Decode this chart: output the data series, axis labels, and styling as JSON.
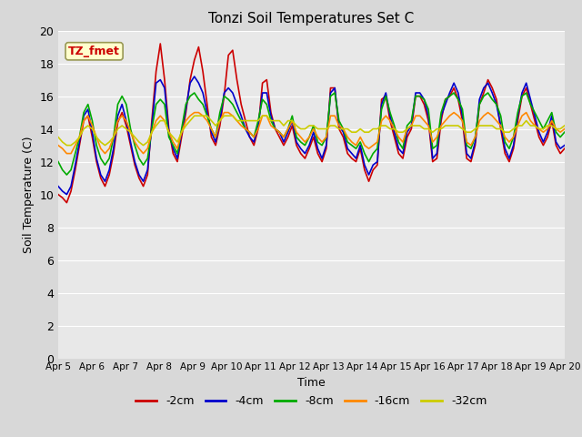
{
  "title": "Tonzi Soil Temperatures Set C",
  "xlabel": "Time",
  "ylabel": "Soil Temperature (C)",
  "annotation": "TZ_fmet",
  "ylim": [
    0,
    20
  ],
  "yticks": [
    0,
    2,
    4,
    6,
    8,
    10,
    12,
    14,
    16,
    18,
    20
  ],
  "xtick_labels": [
    "Apr 5",
    "Apr 6",
    "Apr 7",
    "Apr 8",
    "Apr 9",
    "Apr 10",
    "Apr 11",
    "Apr 12",
    "Apr 13",
    "Apr 14",
    "Apr 15",
    "Apr 16",
    "Apr 17",
    "Apr 18",
    "Apr 19",
    "Apr 20"
  ],
  "series_colors": [
    "#cc0000",
    "#0000cc",
    "#00aa00",
    "#ff8800",
    "#cccc00"
  ],
  "series_labels": [
    "-2cm",
    "-4cm",
    "-8cm",
    "-16cm",
    "-32cm"
  ],
  "series_linewidths": [
    1.2,
    1.2,
    1.2,
    1.2,
    1.2
  ],
  "outer_bg_color": "#d8d8d8",
  "plot_bg_color": "#e8e8e8",
  "grid_color": "#ffffff",
  "n_points": 120,
  "cm2": [
    10.0,
    9.8,
    9.5,
    10.2,
    11.5,
    13.0,
    14.5,
    14.8,
    13.5,
    12.0,
    11.0,
    10.5,
    11.2,
    12.5,
    14.4,
    15.0,
    14.2,
    13.0,
    11.8,
    11.0,
    10.5,
    11.2,
    14.5,
    17.5,
    19.2,
    17.0,
    14.0,
    12.5,
    12.0,
    13.5,
    15.0,
    17.0,
    18.2,
    19.0,
    17.5,
    15.5,
    13.5,
    13.0,
    14.2,
    16.0,
    18.5,
    18.8,
    17.0,
    15.5,
    14.5,
    13.5,
    13.0,
    14.0,
    16.8,
    17.0,
    15.0,
    14.0,
    13.5,
    13.0,
    13.5,
    14.2,
    13.0,
    12.5,
    12.2,
    12.8,
    13.5,
    12.5,
    12.0,
    12.8,
    16.5,
    16.5,
    14.0,
    13.5,
    12.5,
    12.2,
    12.0,
    12.8,
    11.5,
    10.8,
    11.5,
    11.8,
    15.8,
    16.0,
    14.5,
    13.5,
    12.5,
    12.2,
    13.5,
    14.0,
    16.0,
    16.0,
    15.5,
    14.5,
    12.0,
    12.2,
    14.5,
    15.8,
    16.0,
    16.5,
    15.8,
    14.5,
    12.2,
    12.0,
    13.0,
    15.5,
    16.2,
    17.0,
    16.5,
    15.8,
    14.0,
    12.5,
    12.0,
    12.8,
    14.5,
    16.0,
    16.5,
    15.5,
    14.5,
    13.5,
    13.0,
    13.5,
    14.5,
    13.0,
    12.5,
    12.8
  ],
  "cm4": [
    10.5,
    10.2,
    10.0,
    10.5,
    11.8,
    13.2,
    14.8,
    15.2,
    13.8,
    12.2,
    11.2,
    10.8,
    11.5,
    12.8,
    14.8,
    15.5,
    14.5,
    13.2,
    12.0,
    11.2,
    10.8,
    11.5,
    14.2,
    16.8,
    17.0,
    16.5,
    13.8,
    12.8,
    12.2,
    13.8,
    15.2,
    16.8,
    17.2,
    16.8,
    16.2,
    15.0,
    13.8,
    13.2,
    14.5,
    16.2,
    16.5,
    16.2,
    15.5,
    14.8,
    14.0,
    13.5,
    13.2,
    14.2,
    16.2,
    16.2,
    14.8,
    14.0,
    13.8,
    13.2,
    13.8,
    14.5,
    13.2,
    12.8,
    12.5,
    13.0,
    13.8,
    12.8,
    12.2,
    13.0,
    16.2,
    16.5,
    14.2,
    13.8,
    12.8,
    12.5,
    12.2,
    13.0,
    11.8,
    11.2,
    11.8,
    12.0,
    15.5,
    16.2,
    14.8,
    13.8,
    12.8,
    12.5,
    13.8,
    14.2,
    16.2,
    16.2,
    15.8,
    14.8,
    12.2,
    12.5,
    14.8,
    15.5,
    16.2,
    16.8,
    16.2,
    14.8,
    12.5,
    12.2,
    13.2,
    15.8,
    16.5,
    16.8,
    16.2,
    15.5,
    14.2,
    12.8,
    12.2,
    13.0,
    14.8,
    16.2,
    16.8,
    15.8,
    14.8,
    13.8,
    13.2,
    13.8,
    14.8,
    13.2,
    12.8,
    13.0
  ],
  "cm8": [
    12.0,
    11.5,
    11.2,
    11.5,
    12.5,
    13.5,
    15.0,
    15.5,
    14.5,
    13.0,
    12.2,
    11.8,
    12.2,
    13.5,
    15.5,
    16.0,
    15.5,
    14.0,
    13.0,
    12.2,
    11.8,
    12.2,
    14.0,
    15.5,
    15.8,
    15.5,
    13.5,
    13.0,
    12.5,
    14.0,
    15.5,
    16.0,
    16.2,
    15.8,
    15.5,
    14.8,
    14.0,
    13.5,
    15.0,
    16.0,
    15.8,
    15.5,
    15.0,
    14.5,
    14.0,
    13.8,
    13.5,
    14.5,
    15.8,
    15.5,
    14.5,
    14.0,
    13.8,
    13.5,
    14.0,
    14.8,
    13.5,
    13.2,
    13.0,
    13.5,
    14.2,
    13.2,
    13.0,
    13.5,
    16.0,
    16.2,
    14.5,
    14.0,
    13.2,
    13.0,
    12.8,
    13.2,
    12.5,
    12.0,
    12.5,
    12.8,
    15.2,
    16.0,
    15.0,
    14.2,
    13.2,
    12.8,
    14.2,
    14.5,
    16.0,
    16.0,
    15.8,
    15.2,
    12.8,
    13.0,
    15.0,
    15.8,
    16.0,
    16.2,
    15.8,
    15.2,
    13.0,
    12.8,
    13.5,
    15.5,
    16.0,
    16.2,
    15.8,
    15.5,
    14.8,
    13.2,
    12.8,
    13.5,
    15.0,
    16.0,
    16.2,
    15.5,
    15.0,
    14.5,
    14.0,
    14.5,
    15.0,
    13.8,
    13.5,
    13.8
  ],
  "cm16": [
    13.0,
    12.8,
    12.5,
    12.5,
    13.0,
    13.5,
    14.5,
    14.8,
    14.2,
    13.5,
    12.8,
    12.5,
    12.8,
    13.5,
    14.5,
    14.8,
    14.5,
    13.8,
    13.2,
    12.8,
    12.5,
    12.8,
    13.8,
    14.5,
    14.8,
    14.5,
    13.8,
    13.2,
    12.8,
    13.8,
    14.5,
    14.8,
    15.0,
    15.0,
    14.8,
    14.5,
    14.0,
    13.5,
    14.5,
    15.0,
    15.0,
    14.8,
    14.5,
    14.2,
    14.0,
    13.8,
    13.5,
    14.0,
    14.8,
    14.8,
    14.2,
    14.0,
    13.8,
    13.5,
    14.0,
    14.5,
    13.8,
    13.5,
    13.2,
    13.5,
    14.0,
    13.5,
    13.2,
    13.5,
    14.8,
    14.8,
    14.2,
    14.0,
    13.5,
    13.2,
    13.0,
    13.5,
    13.0,
    12.8,
    13.0,
    13.2,
    14.5,
    14.8,
    14.5,
    14.0,
    13.5,
    13.2,
    14.0,
    14.2,
    14.8,
    14.8,
    14.5,
    14.2,
    13.2,
    13.5,
    14.2,
    14.5,
    14.8,
    15.0,
    14.8,
    14.5,
    13.2,
    13.0,
    13.5,
    14.5,
    14.8,
    15.0,
    14.8,
    14.5,
    14.2,
    13.5,
    13.2,
    13.5,
    14.2,
    14.8,
    15.0,
    14.5,
    14.2,
    14.0,
    13.8,
    14.0,
    14.5,
    14.0,
    13.8,
    14.0
  ],
  "cm32": [
    13.5,
    13.2,
    13.0,
    13.0,
    13.2,
    13.5,
    14.0,
    14.2,
    14.0,
    13.5,
    13.2,
    13.0,
    13.2,
    13.5,
    14.0,
    14.2,
    14.0,
    13.8,
    13.5,
    13.2,
    13.0,
    13.2,
    13.8,
    14.2,
    14.5,
    14.5,
    13.8,
    13.5,
    13.2,
    13.8,
    14.2,
    14.5,
    14.8,
    14.8,
    14.8,
    14.8,
    14.5,
    14.2,
    14.5,
    14.8,
    14.8,
    14.8,
    14.5,
    14.5,
    14.5,
    14.5,
    14.5,
    14.5,
    14.8,
    14.8,
    14.5,
    14.5,
    14.5,
    14.2,
    14.5,
    14.5,
    14.2,
    14.0,
    14.0,
    14.2,
    14.2,
    14.0,
    14.0,
    14.0,
    14.2,
    14.2,
    14.0,
    14.0,
    14.0,
    13.8,
    13.8,
    14.0,
    13.8,
    13.8,
    14.0,
    14.0,
    14.2,
    14.2,
    14.0,
    14.0,
    13.8,
    13.8,
    14.0,
    14.2,
    14.2,
    14.2,
    14.0,
    14.0,
    13.8,
    14.0,
    14.0,
    14.2,
    14.2,
    14.2,
    14.2,
    14.0,
    13.8,
    13.8,
    14.0,
    14.2,
    14.2,
    14.2,
    14.2,
    14.0,
    14.0,
    13.8,
    13.8,
    14.0,
    14.2,
    14.2,
    14.5,
    14.2,
    14.2,
    14.0,
    14.0,
    14.2,
    14.2,
    14.0,
    14.0,
    14.2
  ]
}
